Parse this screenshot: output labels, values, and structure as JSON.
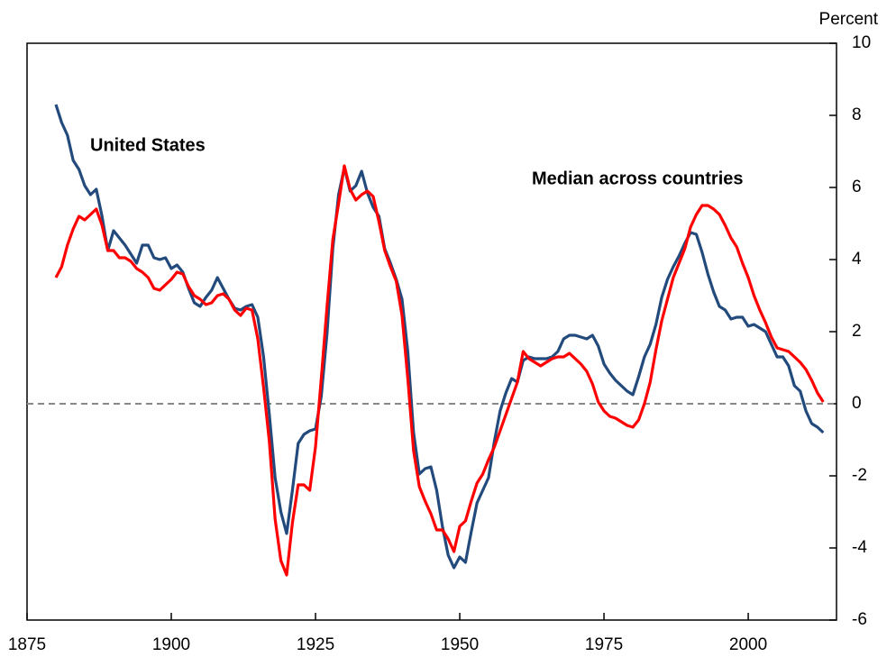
{
  "chart_data": {
    "type": "line",
    "y_axis_label": "Percent",
    "x": [
      1880,
      1881,
      1882,
      1883,
      1884,
      1885,
      1886,
      1887,
      1888,
      1889,
      1890,
      1891,
      1892,
      1893,
      1894,
      1895,
      1896,
      1897,
      1898,
      1899,
      1900,
      1901,
      1902,
      1903,
      1904,
      1905,
      1906,
      1907,
      1908,
      1909,
      1910,
      1911,
      1912,
      1913,
      1914,
      1915,
      1916,
      1917,
      1918,
      1919,
      1920,
      1921,
      1922,
      1923,
      1924,
      1925,
      1926,
      1927,
      1928,
      1929,
      1930,
      1931,
      1932,
      1933,
      1934,
      1935,
      1936,
      1937,
      1938,
      1939,
      1940,
      1941,
      1942,
      1943,
      1944,
      1945,
      1946,
      1947,
      1948,
      1949,
      1950,
      1951,
      1952,
      1953,
      1954,
      1955,
      1956,
      1957,
      1958,
      1959,
      1960,
      1961,
      1962,
      1963,
      1964,
      1965,
      1966,
      1967,
      1968,
      1969,
      1970,
      1971,
      1972,
      1973,
      1974,
      1975,
      1976,
      1977,
      1978,
      1979,
      1980,
      1981,
      1982,
      1983,
      1984,
      1985,
      1986,
      1987,
      1988,
      1989,
      1990,
      1991,
      1992,
      1993,
      1994,
      1995,
      1996,
      1997,
      1998,
      1999,
      2000,
      2001,
      2002,
      2003,
      2004,
      2005,
      2006,
      2007,
      2008,
      2009,
      2010,
      2011,
      2012,
      2013
    ],
    "series": [
      {
        "name": "United States",
        "color": "#234a7c",
        "values": [
          8.3,
          7.8,
          7.45,
          6.75,
          6.5,
          6.05,
          5.8,
          5.95,
          5.2,
          4.25,
          4.8,
          4.6,
          4.4,
          4.15,
          3.9,
          4.4,
          4.4,
          4.05,
          4.0,
          4.05,
          3.75,
          3.85,
          3.65,
          3.2,
          2.8,
          2.7,
          2.95,
          3.15,
          3.5,
          3.2,
          2.9,
          2.65,
          2.6,
          2.7,
          2.75,
          2.4,
          1.3,
          -0.3,
          -2.05,
          -3.0,
          -3.6,
          -2.4,
          -1.1,
          -0.85,
          -0.75,
          -0.7,
          0.2,
          1.95,
          4.3,
          5.8,
          6.55,
          5.9,
          6.05,
          6.45,
          5.85,
          5.45,
          5.2,
          4.3,
          3.9,
          3.45,
          2.9,
          1.45,
          -0.8,
          -1.95,
          -1.8,
          -1.75,
          -2.4,
          -3.4,
          -4.2,
          -4.55,
          -4.25,
          -4.4,
          -3.55,
          -2.75,
          -2.4,
          -2.05,
          -1.05,
          -0.2,
          0.3,
          0.7,
          0.6,
          1.2,
          1.3,
          1.25,
          1.25,
          1.25,
          1.3,
          1.45,
          1.8,
          1.9,
          1.9,
          1.85,
          1.8,
          1.9,
          1.6,
          1.1,
          0.85,
          0.65,
          0.5,
          0.35,
          0.25,
          0.75,
          1.3,
          1.65,
          2.2,
          2.95,
          3.45,
          3.8,
          4.1,
          4.45,
          4.75,
          4.7,
          4.2,
          3.6,
          3.1,
          2.7,
          2.6,
          2.35,
          2.4,
          2.4,
          2.15,
          2.2,
          2.1,
          2.0,
          1.65,
          1.3,
          1.3,
          1.05,
          0.5,
          0.35,
          -0.2,
          -0.55,
          -0.65,
          -0.8
        ]
      },
      {
        "name": "Median across countries",
        "color": "#ff0000",
        "values": [
          3.5,
          3.8,
          4.4,
          4.85,
          5.2,
          5.1,
          5.25,
          5.4,
          4.95,
          4.25,
          4.25,
          4.05,
          4.05,
          3.95,
          3.75,
          3.65,
          3.5,
          3.2,
          3.15,
          3.3,
          3.45,
          3.65,
          3.6,
          3.25,
          3.0,
          2.9,
          2.75,
          2.8,
          3.0,
          3.05,
          2.9,
          2.6,
          2.45,
          2.65,
          2.6,
          1.8,
          0.45,
          -1.05,
          -3.2,
          -4.35,
          -4.75,
          -3.3,
          -2.25,
          -2.25,
          -2.4,
          -1.2,
          0.7,
          2.7,
          4.55,
          5.55,
          6.6,
          5.95,
          5.65,
          5.8,
          5.9,
          5.75,
          5.05,
          4.25,
          3.8,
          3.4,
          2.45,
          0.7,
          -1.3,
          -2.3,
          -2.7,
          -3.05,
          -3.5,
          -3.5,
          -3.75,
          -4.1,
          -3.4,
          -3.25,
          -2.7,
          -2.2,
          -1.95,
          -1.55,
          -1.2,
          -0.75,
          -0.3,
          0.15,
          0.6,
          1.45,
          1.25,
          1.15,
          1.05,
          1.15,
          1.25,
          1.3,
          1.3,
          1.4,
          1.25,
          1.1,
          0.9,
          0.55,
          0.05,
          -0.2,
          -0.35,
          -0.4,
          -0.5,
          -0.6,
          -0.65,
          -0.45,
          0.0,
          0.6,
          1.5,
          2.3,
          2.9,
          3.5,
          3.9,
          4.3,
          4.9,
          5.25,
          5.5,
          5.5,
          5.4,
          5.25,
          4.95,
          4.6,
          4.35,
          3.9,
          3.5,
          3.0,
          2.6,
          2.25,
          1.85,
          1.55,
          1.5,
          1.45,
          1.3,
          1.15,
          0.95,
          0.65,
          0.3,
          0.05
        ]
      }
    ],
    "xlim": [
      1875,
      2015.3
    ],
    "xticks": [
      1875,
      1900,
      1925,
      1950,
      1975,
      2000
    ],
    "ylim": [
      -6,
      10
    ],
    "yticks": [
      -6,
      -4,
      -2,
      0,
      2,
      4,
      6,
      8,
      10
    ],
    "reference_line": 0
  }
}
